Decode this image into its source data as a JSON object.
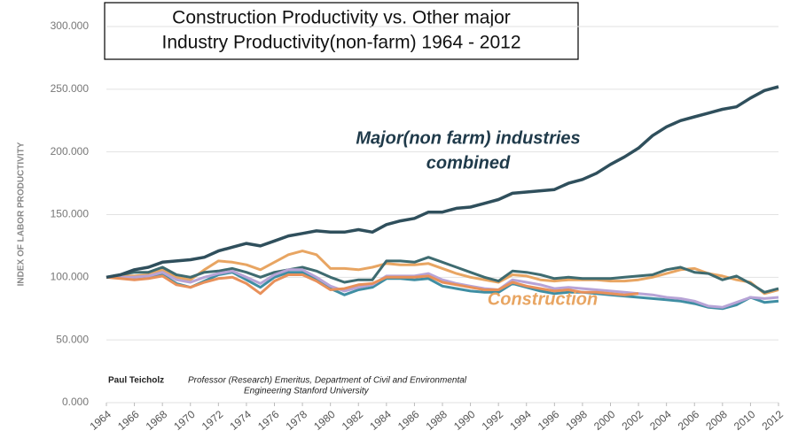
{
  "chart_data": {
    "type": "line",
    "title": [
      "Construction Productivity vs. Other major",
      "Industry Productivity(non-farm) 1964 - 2012"
    ],
    "y_label": "INDEX OF LABOR PRODUCTIVITY",
    "x": [
      1964,
      1965,
      1966,
      1967,
      1968,
      1969,
      1970,
      1971,
      1972,
      1973,
      1974,
      1975,
      1976,
      1977,
      1978,
      1979,
      1980,
      1981,
      1982,
      1983,
      1984,
      1985,
      1986,
      1987,
      1988,
      1989,
      1990,
      1991,
      1992,
      1993,
      1994,
      1995,
      1996,
      1997,
      1998,
      1999,
      2000,
      2001,
      2002,
      2003,
      2004,
      2005,
      2006,
      2007,
      2008,
      2009,
      2010,
      2011,
      2012
    ],
    "xlim": [
      1964,
      2012
    ],
    "xticks": [
      1964,
      1966,
      1968,
      1970,
      1972,
      1974,
      1976,
      1978,
      1980,
      1982,
      1984,
      1986,
      1988,
      1990,
      1992,
      1994,
      1996,
      1998,
      2000,
      2002,
      2004,
      2006,
      2008,
      2010,
      2012
    ],
    "ylim": [
      0,
      300
    ],
    "yticks": [
      {
        "value": 0,
        "label": "0.000"
      },
      {
        "value": 50,
        "label": "50.000"
      },
      {
        "value": 100,
        "label": "100.000"
      },
      {
        "value": 150,
        "label": "150.000"
      },
      {
        "value": 200,
        "label": "200.000"
      },
      {
        "value": 250,
        "label": "250.000"
      },
      {
        "value": 300,
        "label": "300.000"
      }
    ],
    "grid": true,
    "series": [
      {
        "color": "#e8a562",
        "values": [
          100,
          101,
          101,
          102,
          106,
          100,
          98,
          106,
          113,
          112,
          110,
          106,
          112,
          118,
          121,
          118,
          107,
          107,
          106,
          108,
          111,
          110,
          110,
          111,
          107,
          103,
          100,
          98,
          96,
          102,
          101,
          98,
          97,
          98,
          98,
          98,
          97,
          97,
          98,
          100,
          103,
          106,
          107,
          103,
          101,
          98,
          96,
          87,
          90
        ]
      },
      {
        "color": "#3e6b70",
        "values": [
          100,
          102,
          104,
          104,
          108,
          102,
          100,
          104,
          105,
          107,
          104,
          100,
          104,
          106,
          108,
          105,
          100,
          96,
          98,
          98,
          113,
          113,
          112,
          116,
          112,
          108,
          104,
          100,
          97,
          105,
          104,
          102,
          99,
          100,
          99,
          99,
          99,
          100,
          101,
          102,
          106,
          108,
          104,
          103,
          98,
          101,
          95,
          88,
          91
        ]
      },
      {
        "color": "#3f8ea3",
        "values": [
          100,
          100,
          99,
          100,
          102,
          95,
          92,
          97,
          102,
          104,
          98,
          92,
          100,
          104,
          104,
          98,
          91,
          86,
          90,
          92,
          99,
          99,
          98,
          99,
          93,
          91,
          89,
          88,
          88,
          95,
          92,
          89,
          87,
          88,
          88,
          87,
          86,
          85,
          84,
          83,
          82,
          81,
          79,
          76,
          75,
          78,
          84,
          80,
          81
        ]
      },
      {
        "color": "#b7a3d6",
        "values": [
          100,
          100,
          100,
          101,
          104,
          98,
          96,
          100,
          103,
          105,
          100,
          95,
          102,
          106,
          106,
          100,
          93,
          89,
          92,
          94,
          101,
          101,
          101,
          103,
          98,
          95,
          93,
          91,
          90,
          98,
          96,
          94,
          91,
          92,
          91,
          90,
          89,
          88,
          87,
          86,
          84,
          83,
          81,
          77,
          76,
          80,
          84,
          83,
          84
        ]
      },
      {
        "color": "#e8905a",
        "values": [
          100,
          99,
          98,
          99,
          101,
          94,
          92,
          96,
          99,
          100,
          95,
          87,
          97,
          102,
          102,
          97,
          90,
          91,
          94,
          95,
          100,
          100,
          100,
          101,
          96,
          94,
          92,
          90,
          90,
          96,
          93,
          91,
          89,
          90,
          88,
          88,
          87,
          86,
          87,
          null,
          null,
          null,
          null,
          null,
          null,
          null,
          null,
          null,
          null
        ]
      },
      {
        "color": "#2f4f5c",
        "values": [
          100,
          102,
          106,
          108,
          112,
          113,
          114,
          116,
          121,
          124,
          127,
          125,
          129,
          133,
          135,
          137,
          136,
          136,
          138,
          136,
          142,
          145,
          147,
          152,
          152,
          155,
          156,
          159,
          162,
          167,
          168,
          169,
          170,
          175,
          178,
          183,
          190,
          196,
          203,
          213,
          220,
          225,
          228,
          231,
          234,
          236,
          243,
          249,
          252
        ]
      }
    ],
    "annotations": [
      {
        "text": [
          "Major(non farm) industries",
          "combined"
        ],
        "color": "#1f3a4a"
      },
      {
        "text": [
          "Construction"
        ],
        "color": "#e8a562"
      }
    ],
    "footnote": {
      "author": "Paul Teicholz",
      "lines": [
        "Professor (Research) Emeritus, Department of Civil and Environmental",
        "Engineering  Stanford University"
      ]
    }
  }
}
